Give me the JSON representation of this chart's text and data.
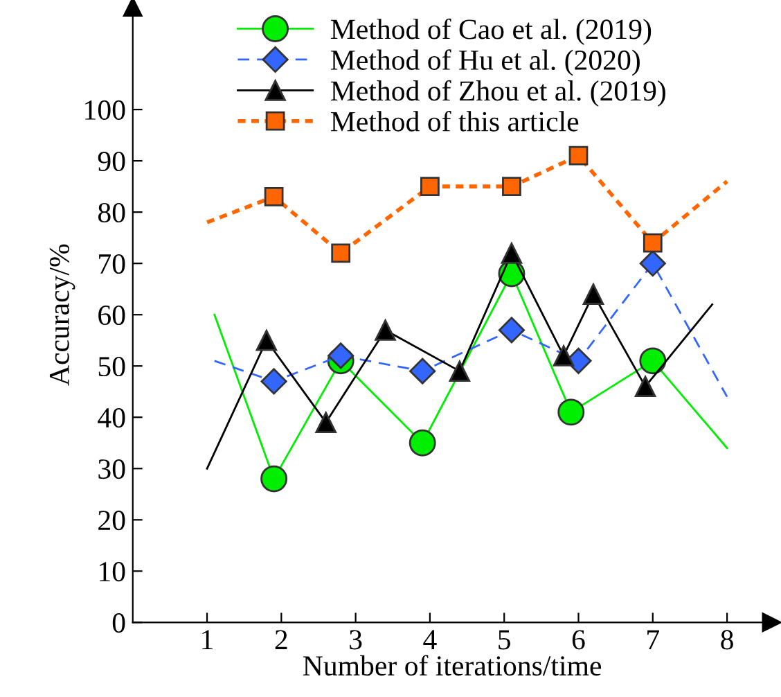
{
  "chart_data": {
    "type": "line",
    "xlabel": "Number of iterations/time",
    "ylabel": "Accuracy/%",
    "xlim": [
      0,
      8.6
    ],
    "xticks": [
      1,
      2,
      3,
      4,
      5,
      6,
      7,
      8
    ],
    "ylim": [
      0,
      120
    ],
    "yticks": [
      0,
      10,
      20,
      30,
      40,
      50,
      60,
      70,
      80,
      90,
      100
    ],
    "grid": false,
    "legend": "top",
    "series": [
      {
        "name": "Method of Cao et al. (2019)",
        "color": "#00ee00",
        "marker": "circle",
        "line_style": "solid",
        "x": [
          1.1,
          1.9,
          2.8,
          3.9,
          5.1,
          5.9,
          7.0,
          8.0
        ],
        "values": [
          60,
          28,
          51,
          35,
          68,
          41,
          51,
          34
        ]
      },
      {
        "name": "Method of Hu et al. (2020)",
        "color": "#3366ff",
        "marker": "diamond",
        "line_style": "dashed",
        "x": [
          1.1,
          1.9,
          2.8,
          3.9,
          5.1,
          6.0,
          7.0,
          8.0
        ],
        "values": [
          51,
          47,
          52,
          49,
          57,
          51,
          70,
          44
        ]
      },
      {
        "name": "Method of Zhou et al. (2019)",
        "color": "#000000",
        "marker": "triangle",
        "line_style": "solid",
        "x": [
          1.0,
          1.8,
          2.6,
          3.4,
          4.4,
          5.1,
          5.8,
          6.2,
          6.9,
          7.8
        ],
        "values": [
          30,
          55,
          39,
          57,
          49,
          72,
          52,
          64,
          46,
          62
        ]
      },
      {
        "name": "Method of this article",
        "color": "#ff6600",
        "marker": "square",
        "line_style": "dotted",
        "x": [
          1.0,
          1.9,
          2.8,
          4.0,
          5.1,
          6.0,
          7.0,
          8.0
        ],
        "values": [
          78,
          83,
          72,
          85,
          85,
          91,
          74,
          86
        ]
      }
    ]
  }
}
